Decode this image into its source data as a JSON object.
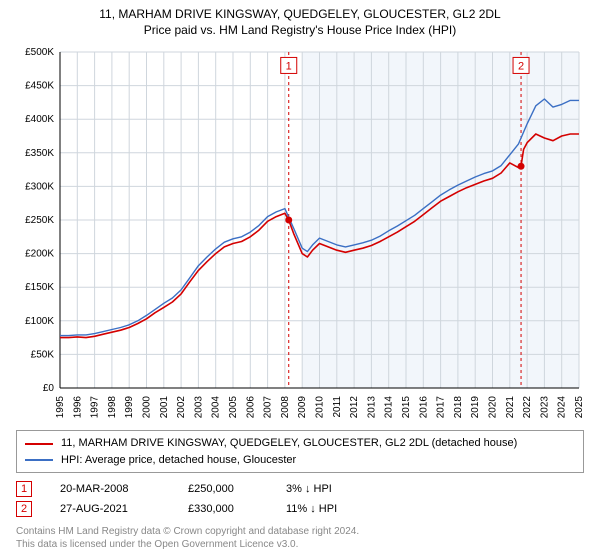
{
  "title_line1": "11, MARHAM DRIVE KINGSWAY, QUEDGELEY, GLOUCESTER, GL2 2DL",
  "title_line2": "Price paid vs. HM Land Registry's House Price Index (HPI)",
  "chart": {
    "type": "line",
    "background_plot_color": "#f2f6fb",
    "background_preplot_color": "#ffffff",
    "grid_color": "#cfd6dd",
    "axis_color": "#000000",
    "ylabel_prefix": "£",
    "ylabel_suffix": "K",
    "ylim": [
      0,
      500
    ],
    "ytick_step": 50,
    "x_years": [
      1995,
      1996,
      1997,
      1998,
      1999,
      2000,
      2001,
      2002,
      2003,
      2004,
      2005,
      2006,
      2007,
      2008,
      2009,
      2010,
      2011,
      2012,
      2013,
      2014,
      2015,
      2016,
      2017,
      2018,
      2019,
      2020,
      2021,
      2022,
      2023,
      2024,
      2025
    ],
    "shade_start_year": 2009,
    "series": [
      {
        "id": "property",
        "color": "#d40000",
        "width": 1.6,
        "points": [
          [
            1995.0,
            75
          ],
          [
            1995.5,
            75
          ],
          [
            1996.0,
            76
          ],
          [
            1996.5,
            75
          ],
          [
            1997.0,
            77
          ],
          [
            1997.5,
            80
          ],
          [
            1998.0,
            83
          ],
          [
            1998.5,
            86
          ],
          [
            1999.0,
            90
          ],
          [
            1999.5,
            96
          ],
          [
            2000.0,
            103
          ],
          [
            2000.5,
            112
          ],
          [
            2001.0,
            120
          ],
          [
            2001.5,
            128
          ],
          [
            2002.0,
            140
          ],
          [
            2002.5,
            158
          ],
          [
            2003.0,
            175
          ],
          [
            2003.5,
            188
          ],
          [
            2004.0,
            200
          ],
          [
            2004.5,
            210
          ],
          [
            2005.0,
            215
          ],
          [
            2005.5,
            218
          ],
          [
            2006.0,
            225
          ],
          [
            2006.5,
            235
          ],
          [
            2007.0,
            248
          ],
          [
            2007.5,
            255
          ],
          [
            2008.0,
            260
          ],
          [
            2008.222,
            250
          ],
          [
            2008.5,
            230
          ],
          [
            2009.0,
            200
          ],
          [
            2009.3,
            195
          ],
          [
            2009.6,
            205
          ],
          [
            2010.0,
            215
          ],
          [
            2010.5,
            210
          ],
          [
            2011.0,
            205
          ],
          [
            2011.5,
            202
          ],
          [
            2012.0,
            205
          ],
          [
            2012.5,
            208
          ],
          [
            2013.0,
            212
          ],
          [
            2013.5,
            218
          ],
          [
            2014.0,
            225
          ],
          [
            2014.5,
            232
          ],
          [
            2015.0,
            240
          ],
          [
            2015.5,
            248
          ],
          [
            2016.0,
            258
          ],
          [
            2016.5,
            268
          ],
          [
            2017.0,
            278
          ],
          [
            2017.5,
            285
          ],
          [
            2018.0,
            292
          ],
          [
            2018.5,
            298
          ],
          [
            2019.0,
            303
          ],
          [
            2019.5,
            308
          ],
          [
            2020.0,
            312
          ],
          [
            2020.5,
            320
          ],
          [
            2021.0,
            335
          ],
          [
            2021.5,
            328
          ],
          [
            2021.65,
            330
          ],
          [
            2021.8,
            355
          ],
          [
            2022.0,
            365
          ],
          [
            2022.5,
            378
          ],
          [
            2023.0,
            372
          ],
          [
            2023.5,
            368
          ],
          [
            2024.0,
            375
          ],
          [
            2024.5,
            378
          ],
          [
            2025.0,
            378
          ]
        ]
      },
      {
        "id": "hpi",
        "color": "#3b6fc4",
        "width": 1.4,
        "points": [
          [
            1995.0,
            78
          ],
          [
            1995.5,
            78
          ],
          [
            1996.0,
            79
          ],
          [
            1996.5,
            79
          ],
          [
            1997.0,
            81
          ],
          [
            1997.5,
            84
          ],
          [
            1998.0,
            87
          ],
          [
            1998.5,
            90
          ],
          [
            1999.0,
            94
          ],
          [
            1999.5,
            100
          ],
          [
            2000.0,
            108
          ],
          [
            2000.5,
            117
          ],
          [
            2001.0,
            126
          ],
          [
            2001.5,
            134
          ],
          [
            2002.0,
            146
          ],
          [
            2002.5,
            164
          ],
          [
            2003.0,
            182
          ],
          [
            2003.5,
            195
          ],
          [
            2004.0,
            207
          ],
          [
            2004.5,
            217
          ],
          [
            2005.0,
            222
          ],
          [
            2005.5,
            225
          ],
          [
            2006.0,
            232
          ],
          [
            2006.5,
            242
          ],
          [
            2007.0,
            255
          ],
          [
            2007.5,
            262
          ],
          [
            2008.0,
            267
          ],
          [
            2008.5,
            238
          ],
          [
            2009.0,
            208
          ],
          [
            2009.3,
            203
          ],
          [
            2009.6,
            213
          ],
          [
            2010.0,
            223
          ],
          [
            2010.5,
            218
          ],
          [
            2011.0,
            213
          ],
          [
            2011.5,
            210
          ],
          [
            2012.0,
            213
          ],
          [
            2012.5,
            216
          ],
          [
            2013.0,
            220
          ],
          [
            2013.5,
            226
          ],
          [
            2014.0,
            234
          ],
          [
            2014.5,
            241
          ],
          [
            2015.0,
            249
          ],
          [
            2015.5,
            257
          ],
          [
            2016.0,
            267
          ],
          [
            2016.5,
            277
          ],
          [
            2017.0,
            287
          ],
          [
            2017.5,
            295
          ],
          [
            2018.0,
            302
          ],
          [
            2018.5,
            308
          ],
          [
            2019.0,
            314
          ],
          [
            2019.5,
            319
          ],
          [
            2020.0,
            323
          ],
          [
            2020.5,
            331
          ],
          [
            2021.0,
            347
          ],
          [
            2021.5,
            363
          ],
          [
            2022.0,
            393
          ],
          [
            2022.5,
            420
          ],
          [
            2023.0,
            430
          ],
          [
            2023.5,
            418
          ],
          [
            2024.0,
            422
          ],
          [
            2024.5,
            428
          ],
          [
            2025.0,
            428
          ]
        ]
      }
    ],
    "markers": [
      {
        "id": "1",
        "year_frac": 2008.222,
        "label_y": 480,
        "badge_color": "#d40000",
        "dot_value": 250
      },
      {
        "id": "2",
        "year_frac": 2021.65,
        "label_y": 480,
        "badge_color": "#d40000",
        "dot_value": 330
      }
    ]
  },
  "legend": {
    "items": [
      {
        "color": "#d40000",
        "label": "11, MARHAM DRIVE KINGSWAY, QUEDGELEY, GLOUCESTER, GL2 2DL (detached house)"
      },
      {
        "color": "#3b6fc4",
        "label": "HPI: Average price, detached house, Gloucester"
      }
    ]
  },
  "marker_table": [
    {
      "badge": "1",
      "badge_color": "#d40000",
      "date": "20-MAR-2008",
      "price": "£250,000",
      "pct": "3% ↓ HPI"
    },
    {
      "badge": "2",
      "badge_color": "#d40000",
      "date": "27-AUG-2021",
      "price": "£330,000",
      "pct": "11% ↓ HPI"
    }
  ],
  "attribution_line1": "Contains HM Land Registry data © Crown copyright and database right 2024.",
  "attribution_line2": "This data is licensed under the Open Government Licence v3.0."
}
